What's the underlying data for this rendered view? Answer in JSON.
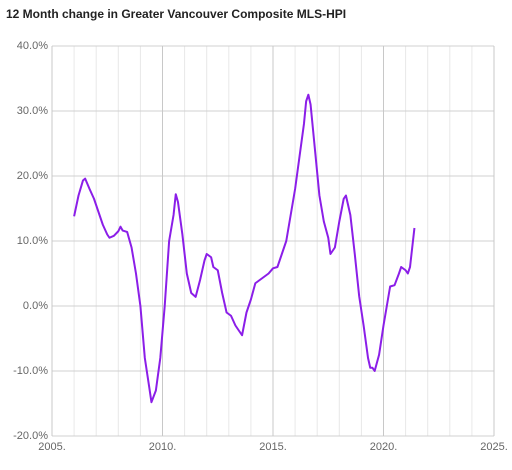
{
  "chart_data": {
    "type": "line",
    "title": "12 Month change in Greater Vancouver Composite MLS-HPI",
    "xlim": [
      2005,
      2025
    ],
    "xticks": [
      {
        "value": 2005,
        "label": "2005."
      },
      {
        "value": 2010,
        "label": "2010."
      },
      {
        "value": 2015,
        "label": "2015."
      },
      {
        "value": 2020,
        "label": "2020."
      },
      {
        "value": 2025,
        "label": "2025."
      }
    ],
    "ylim": [
      -20,
      40
    ],
    "yticks": [
      {
        "value": -20,
        "label": "-20.0%"
      },
      {
        "value": -10,
        "label": "-10.0%"
      },
      {
        "value": 0,
        "label": "0.0%"
      },
      {
        "value": 10,
        "label": "10.0%"
      },
      {
        "value": 20,
        "label": "20.0%"
      },
      {
        "value": 30,
        "label": "30.0%"
      },
      {
        "value": 40,
        "label": "40.0%"
      }
    ],
    "grid": true,
    "series": [
      {
        "color": "#8b1ee8",
        "x": [
          2006.0,
          2006.2,
          2006.4,
          2006.5,
          2006.7,
          2006.9,
          2007.1,
          2007.3,
          2007.5,
          2007.6,
          2007.8,
          2008.0,
          2008.1,
          2008.2,
          2008.4,
          2008.6,
          2008.8,
          2009.0,
          2009.2,
          2009.4,
          2009.5,
          2009.7,
          2009.9,
          2010.1,
          2010.3,
          2010.5,
          2010.6,
          2010.7,
          2010.9,
          2011.1,
          2011.3,
          2011.5,
          2011.7,
          2011.9,
          2012.0,
          2012.2,
          2012.3,
          2012.5,
          2012.7,
          2012.9,
          2013.1,
          2013.3,
          2013.5,
          2013.6,
          2013.8,
          2014.0,
          2014.2,
          2014.4,
          2014.6,
          2014.8,
          2015.0,
          2015.2,
          2015.4,
          2015.6,
          2015.8,
          2016.0,
          2016.2,
          2016.4,
          2016.5,
          2016.6,
          2016.7,
          2016.9,
          2017.1,
          2017.3,
          2017.5,
          2017.6,
          2017.8,
          2018.0,
          2018.2,
          2018.3,
          2018.5,
          2018.7,
          2018.9,
          2019.1,
          2019.3,
          2019.4,
          2019.5,
          2019.6,
          2019.8,
          2020.0,
          2020.2,
          2020.3,
          2020.5,
          2020.7,
          2020.8,
          2021.0,
          2021.1,
          2021.2,
          2021.4
        ],
        "values": [
          13.8,
          17,
          19.3,
          19.6,
          18,
          16.5,
          14.5,
          12.5,
          11,
          10.5,
          10.8,
          11.5,
          12.2,
          11.6,
          11.4,
          9,
          5,
          0,
          -8,
          -12.5,
          -14.8,
          -13,
          -8,
          0,
          10,
          14,
          17.2,
          16,
          11,
          5,
          2,
          1.4,
          4,
          7,
          8,
          7.5,
          6,
          5.5,
          2,
          -1,
          -1.5,
          -3,
          -4,
          -4.5,
          -1,
          1,
          3.5,
          4,
          4.5,
          5,
          5.8,
          6,
          8,
          10,
          14,
          18,
          23,
          28,
          31.5,
          32.5,
          31,
          24,
          17,
          13,
          10.5,
          8,
          9,
          13,
          16.5,
          17,
          14,
          8,
          1.5,
          -3,
          -8,
          -9.5,
          -9.5,
          -10,
          -7.5,
          -3,
          1,
          3,
          3.2,
          5,
          6,
          5.5,
          5,
          6,
          12
        ]
      }
    ]
  }
}
